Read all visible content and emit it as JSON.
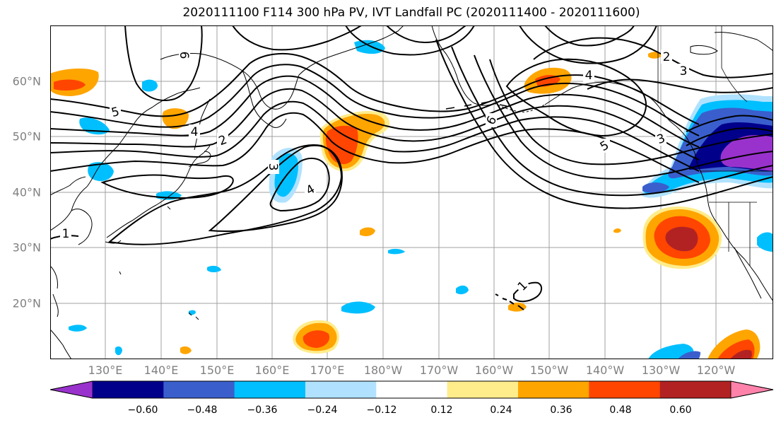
{
  "title": "2020111100 F114 300 hPa PV, IVT Landfall PC (2020111400 - 2020111600)",
  "map": {
    "lat_labels": [
      "60°N",
      "50°N",
      "40°N",
      "30°N",
      "20°N"
    ],
    "lon_labels": [
      "130°E",
      "140°E",
      "150°E",
      "160°E",
      "170°E",
      "180°W",
      "170°W",
      "160°W",
      "150°W",
      "140°W",
      "130°W",
      "120°W"
    ],
    "contour_labels": [
      "1",
      "1",
      "2",
      "2",
      "3",
      "3",
      "3",
      "4",
      "4",
      "4",
      "5",
      "5",
      "6",
      "6"
    ]
  },
  "colorbar": {
    "tick_labels": [
      "−0.60",
      "−0.48",
      "−0.36",
      "−0.24",
      "−0.12",
      "0.12",
      "0.24",
      "0.36",
      "0.48",
      "0.60"
    ],
    "colors": [
      "#9932CC",
      "#00008B",
      "#3A5FCD",
      "#00BFFF",
      "#B0E2FF",
      "#FFFFFF",
      "#FFEC8B",
      "#FFA500",
      "#FF4500",
      "#B22222",
      "#FF82AB"
    ]
  }
}
